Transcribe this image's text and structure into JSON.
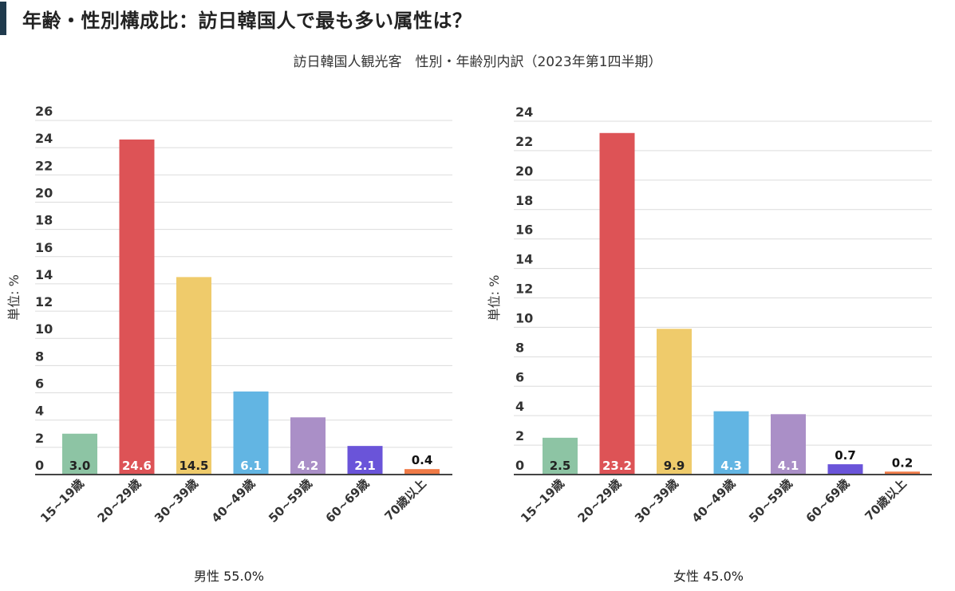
{
  "header": {
    "title": "年齢・性別構成比：訪日韓国人で最も多い属性は？"
  },
  "subtitle": "訪日韓国人観光客　性別・年齢別内訳（2023年第1四半期）",
  "chart_data": [
    {
      "type": "bar",
      "categories": [
        "15~19歳",
        "20~29歳",
        "30~39歳",
        "40~49歳",
        "50~59歳",
        "60~69歳",
        "70歳以上"
      ],
      "values": [
        3.0,
        24.6,
        14.5,
        6.1,
        4.2,
        2.1,
        0.4
      ],
      "value_labels": [
        "3.0",
        "24.6",
        "14.5",
        "6.1",
        "4.2",
        "2.1",
        "0.4"
      ],
      "colors": [
        "#8dc4a4",
        "#dd5356",
        "#efcb6b",
        "#62b5e3",
        "#aa8fc7",
        "#6a54d9",
        "#f07a46"
      ],
      "ylabel": "単位: %",
      "ylim": [
        0,
        26
      ],
      "yticks": [
        "0",
        "2",
        "4",
        "6",
        "8",
        "10",
        "12",
        "14",
        "16",
        "18",
        "20",
        "22",
        "24",
        "26"
      ],
      "xlabel": "男性 55.0%",
      "grid": true
    },
    {
      "type": "bar",
      "categories": [
        "15~19歳",
        "20~29歳",
        "30~39歳",
        "40~49歳",
        "50~59歳",
        "60~69歳",
        "70歳以上"
      ],
      "values": [
        2.5,
        23.2,
        9.9,
        4.3,
        4.1,
        0.7,
        0.2
      ],
      "value_labels": [
        "2.5",
        "23.2",
        "9.9",
        "4.3",
        "4.1",
        "0.7",
        "0.2"
      ],
      "colors": [
        "#8dc4a4",
        "#dd5356",
        "#efcb6b",
        "#62b5e3",
        "#aa8fc7",
        "#6a54d9",
        "#f07a46"
      ],
      "ylabel": "単位: %",
      "ylim": [
        0,
        24
      ],
      "yticks": [
        "0",
        "2",
        "4",
        "6",
        "8",
        "10",
        "12",
        "14",
        "16",
        "18",
        "20",
        "22",
        "24"
      ],
      "xlabel": "女性 45.0%",
      "grid": true
    }
  ]
}
